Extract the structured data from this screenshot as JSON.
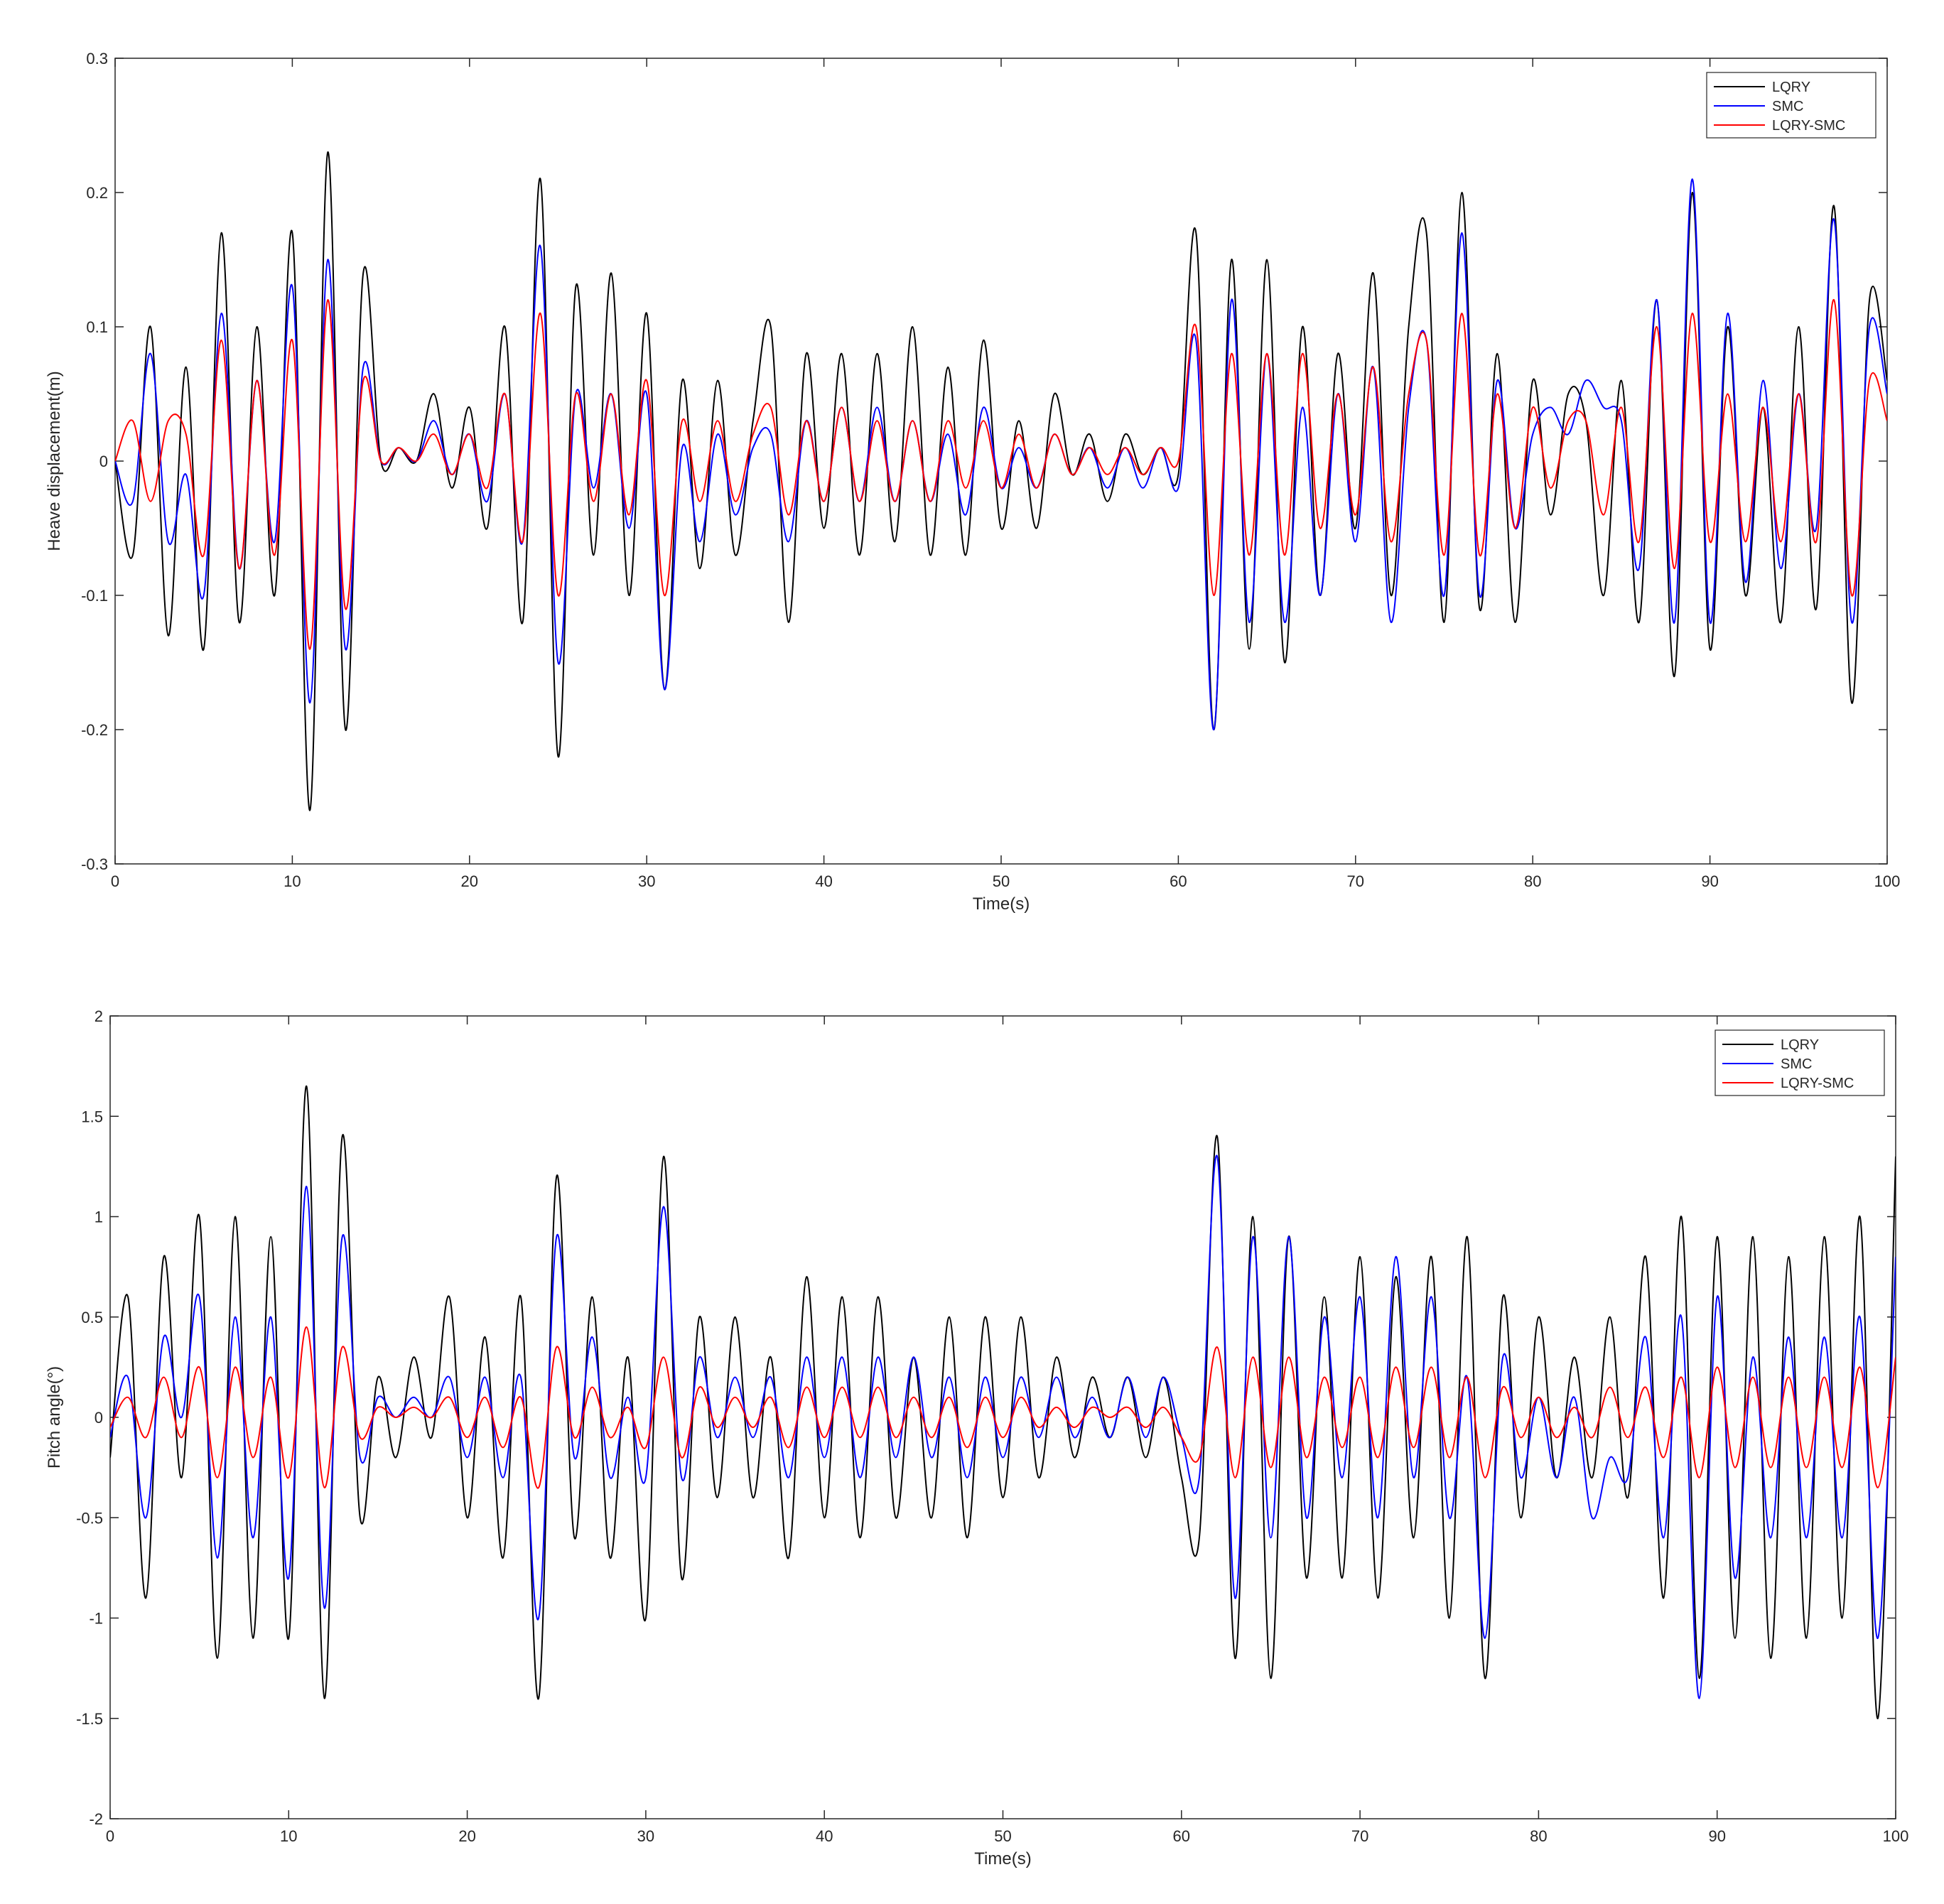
{
  "chart_data": [
    {
      "type": "line",
      "title": "",
      "xlabel": "Time(s)",
      "ylabel": "Heave displacement(m)",
      "xlim": [
        0,
        100
      ],
      "ylim": [
        -0.3,
        0.3
      ],
      "x_ticks": [
        "0",
        "10",
        "20",
        "30",
        "40",
        "50",
        "60",
        "70",
        "80",
        "90",
        "100"
      ],
      "y_ticks": [
        "-0.3",
        "-0.2",
        "-0.1",
        "0",
        "0.1",
        "0.2",
        "0.3"
      ],
      "grid": false,
      "legend_position": "top-right",
      "x": [
        0,
        1,
        2,
        3,
        4,
        5,
        6,
        7,
        8,
        9,
        10,
        11,
        12,
        13,
        14,
        15,
        16,
        17,
        18,
        19,
        20,
        21,
        22,
        23,
        24,
        25,
        26,
        27,
        28,
        29,
        30,
        31,
        32,
        33,
        34,
        35,
        36,
        37,
        38,
        39,
        40,
        41,
        42,
        43,
        44,
        45,
        46,
        47,
        48,
        49,
        50,
        51,
        52,
        53,
        54,
        55,
        56,
        57,
        58,
        59,
        60,
        61,
        62,
        63,
        64,
        65,
        66,
        67,
        68,
        69,
        70,
        71,
        72,
        73,
        74,
        75,
        76,
        77,
        78,
        79,
        80,
        81,
        82,
        83,
        84,
        85,
        86,
        87,
        88,
        89,
        90,
        91,
        92,
        93,
        94,
        95,
        96,
        97,
        98,
        99,
        100
      ],
      "series": [
        {
          "name": "LQRY",
          "color": "#000000",
          "values": [
            0,
            -0.07,
            0.1,
            -0.13,
            0.07,
            -0.14,
            0.17,
            -0.12,
            0.1,
            -0.1,
            0.17,
            -0.26,
            0.23,
            -0.2,
            0.14,
            0,
            0.01,
            0,
            0.05,
            -0.02,
            0.04,
            -0.05,
            0.1,
            -0.12,
            0.21,
            -0.22,
            0.13,
            -0.07,
            0.14,
            -0.1,
            0.11,
            -0.17,
            0.06,
            -0.08,
            0.06,
            -0.07,
            0.03,
            0.1,
            -0.12,
            0.08,
            -0.05,
            0.08,
            -0.07,
            0.08,
            -0.06,
            0.1,
            -0.07,
            0.07,
            -0.07,
            0.09,
            -0.05,
            0.03,
            -0.05,
            0.05,
            -0.01,
            0.02,
            -0.03,
            0.02,
            -0.01,
            0.01,
            -0.01,
            0.17,
            -0.2,
            0.15,
            -0.14,
            0.15,
            -0.15,
            0.1,
            -0.1,
            0.08,
            -0.05,
            0.14,
            -0.1,
            0.1,
            0.17,
            -0.12,
            0.2,
            -0.11,
            0.08,
            -0.12,
            0.06,
            -0.04,
            0.05,
            0.03,
            -0.1,
            0.06,
            -0.12,
            0.12,
            -0.16,
            0.2,
            -0.14,
            0.1,
            -0.1,
            0.04,
            -0.12,
            0.1,
            -0.11,
            0.19,
            -0.18,
            0.12,
            0.06
          ]
        },
        {
          "name": "SMC",
          "color": "#0000FF",
          "values": [
            0,
            -0.03,
            0.08,
            -0.06,
            -0.01,
            -0.1,
            0.11,
            -0.08,
            0.06,
            -0.06,
            0.13,
            -0.18,
            0.15,
            -0.14,
            0.07,
            0,
            0.01,
            0,
            0.03,
            -0.01,
            0.02,
            -0.03,
            0.05,
            -0.06,
            0.16,
            -0.15,
            0.05,
            -0.02,
            0.05,
            -0.05,
            0.05,
            -0.17,
            0.01,
            -0.06,
            0.02,
            -0.04,
            0.01,
            0.02,
            -0.06,
            0.03,
            -0.03,
            0.04,
            -0.03,
            0.04,
            -0.03,
            0.03,
            -0.03,
            0.02,
            -0.04,
            0.04,
            -0.02,
            0.01,
            -0.02,
            0.02,
            -0.01,
            0.01,
            -0.02,
            0.01,
            -0.02,
            0.01,
            -0.02,
            0.09,
            -0.2,
            0.12,
            -0.12,
            0.08,
            -0.12,
            0.04,
            -0.1,
            0.05,
            -0.06,
            0.07,
            -0.12,
            0.04,
            0.09,
            -0.1,
            0.17,
            -0.1,
            0.06,
            -0.05,
            0.02,
            0.04,
            0.02,
            0.06,
            0.04,
            0.03,
            -0.08,
            0.12,
            -0.12,
            0.21,
            -0.12,
            0.11,
            -0.09,
            0.06,
            -0.08,
            0.05,
            -0.05,
            0.18,
            -0.12,
            0.1,
            0.05
          ]
        },
        {
          "name": "LQRY-SMC",
          "color": "#FF0000",
          "values": [
            0,
            0.03,
            -0.03,
            0.03,
            0.02,
            -0.07,
            0.09,
            -0.08,
            0.06,
            -0.07,
            0.09,
            -0.14,
            0.12,
            -0.11,
            0.06,
            0,
            0.01,
            0,
            0.02,
            -0.01,
            0.02,
            -0.02,
            0.05,
            -0.06,
            0.11,
            -0.1,
            0.05,
            -0.03,
            0.05,
            -0.04,
            0.06,
            -0.1,
            0.03,
            -0.03,
            0.03,
            -0.03,
            0.02,
            0.04,
            -0.04,
            0.03,
            -0.03,
            0.04,
            -0.03,
            0.03,
            -0.03,
            0.03,
            -0.03,
            0.03,
            -0.02,
            0.03,
            -0.02,
            0.02,
            -0.02,
            0.02,
            -0.01,
            0.01,
            -0.01,
            0.01,
            -0.01,
            0.01,
            0,
            0.1,
            -0.1,
            0.08,
            -0.07,
            0.08,
            -0.07,
            0.08,
            -0.05,
            0.05,
            -0.04,
            0.07,
            -0.06,
            0.05,
            0.09,
            -0.07,
            0.11,
            -0.07,
            0.05,
            -0.05,
            0.04,
            -0.02,
            0.03,
            0.03,
            -0.04,
            0.04,
            -0.06,
            0.1,
            -0.08,
            0.11,
            -0.06,
            0.05,
            -0.06,
            0.04,
            -0.06,
            0.05,
            -0.06,
            0.12,
            -0.1,
            0.06,
            0.03
          ]
        }
      ]
    },
    {
      "type": "line",
      "title": "",
      "xlabel": "Time(s)",
      "ylabel": "Pitch angle(°)",
      "xlim": [
        0,
        100
      ],
      "ylim": [
        -2,
        2
      ],
      "x_ticks": [
        "0",
        "10",
        "20",
        "30",
        "40",
        "50",
        "60",
        "70",
        "80",
        "90",
        "100"
      ],
      "y_ticks": [
        "-2",
        "-1.5",
        "-1",
        "-0.5",
        "0",
        "0.5",
        "1",
        "1.5",
        "2"
      ],
      "grid": false,
      "legend_position": "top-right",
      "x": [
        0,
        1,
        2,
        3,
        4,
        5,
        6,
        7,
        8,
        9,
        10,
        11,
        12,
        13,
        14,
        15,
        16,
        17,
        18,
        19,
        20,
        21,
        22,
        23,
        24,
        25,
        26,
        27,
        28,
        29,
        30,
        31,
        32,
        33,
        34,
        35,
        36,
        37,
        38,
        39,
        40,
        41,
        42,
        43,
        44,
        45,
        46,
        47,
        48,
        49,
        50,
        51,
        52,
        53,
        54,
        55,
        56,
        57,
        58,
        59,
        60,
        61,
        62,
        63,
        64,
        65,
        66,
        67,
        68,
        69,
        70,
        71,
        72,
        73,
        74,
        75,
        76,
        77,
        78,
        79,
        80,
        81,
        82,
        83,
        84,
        85,
        86,
        87,
        88,
        89,
        90,
        91,
        92,
        93,
        94,
        95,
        96,
        97,
        98,
        99,
        100
      ],
      "series": [
        {
          "name": "LQRY",
          "color": "#000000",
          "values": [
            -0.2,
            0.6,
            -0.9,
            0.8,
            -0.3,
            1,
            -1.2,
            1,
            -1.1,
            0.9,
            -1.1,
            1.65,
            -1.4,
            1.4,
            -0.5,
            0.2,
            -0.2,
            0.3,
            -0.1,
            0.6,
            -0.5,
            0.4,
            -0.7,
            0.6,
            -1.4,
            1.2,
            -0.6,
            0.6,
            -0.7,
            0.3,
            -1,
            1.3,
            -0.8,
            0.5,
            -0.4,
            0.5,
            -0.4,
            0.3,
            -0.7,
            0.7,
            -0.5,
            0.6,
            -0.6,
            0.6,
            -0.5,
            0.3,
            -0.5,
            0.5,
            -0.6,
            0.5,
            -0.4,
            0.5,
            -0.3,
            0.3,
            -0.2,
            0.2,
            -0.1,
            0.2,
            -0.2,
            0.2,
            -0.3,
            -0.6,
            1.4,
            -1.2,
            1,
            -1.3,
            0.9,
            -0.8,
            0.6,
            -0.8,
            0.8,
            -0.9,
            0.7,
            -0.6,
            0.8,
            -1,
            0.9,
            -1.3,
            0.6,
            -0.5,
            0.5,
            -0.3,
            0.3,
            -0.3,
            0.5,
            -0.4,
            0.8,
            -0.9,
            1,
            -1.3,
            0.9,
            -1.1,
            0.9,
            -1.2,
            0.8,
            -1.1,
            0.9,
            -1,
            1,
            -1.5,
            1.3
          ]
        },
        {
          "name": "SMC",
          "color": "#0000FF",
          "values": [
            -0.1,
            0.2,
            -0.5,
            0.4,
            0,
            0.6,
            -0.7,
            0.5,
            -0.6,
            0.5,
            -0.8,
            1.15,
            -0.95,
            0.9,
            -0.2,
            0.1,
            0,
            0.1,
            0,
            0.2,
            -0.2,
            0.2,
            -0.3,
            0.2,
            -1,
            0.9,
            -0.2,
            0.4,
            -0.3,
            0.1,
            -0.3,
            1.05,
            -0.3,
            0.3,
            -0.1,
            0.2,
            -0.1,
            0.2,
            -0.3,
            0.3,
            -0.2,
            0.3,
            -0.3,
            0.3,
            -0.2,
            0.3,
            -0.2,
            0.2,
            -0.3,
            0.2,
            -0.2,
            0.2,
            -0.1,
            0.2,
            -0.1,
            0.1,
            -0.1,
            0.2,
            -0.1,
            0.2,
            -0.1,
            -0.3,
            1.3,
            -0.9,
            0.9,
            -0.6,
            0.9,
            -0.5,
            0.5,
            -0.3,
            0.6,
            -0.5,
            0.8,
            -0.3,
            0.6,
            -0.5,
            0.2,
            -1.1,
            0.3,
            -0.3,
            0.1,
            -0.3,
            0.1,
            -0.5,
            -0.2,
            -0.3,
            0.4,
            -0.6,
            0.5,
            -1.4,
            0.6,
            -0.8,
            0.3,
            -0.6,
            0.4,
            -0.6,
            0.4,
            -0.6,
            0.5,
            -1.1,
            0.8
          ]
        },
        {
          "name": "LQRY-SMC",
          "color": "#FF0000",
          "values": [
            -0.05,
            0.1,
            -0.1,
            0.2,
            -0.1,
            0.25,
            -0.3,
            0.25,
            -0.2,
            0.2,
            -0.3,
            0.45,
            -0.35,
            0.35,
            -0.1,
            0.05,
            0,
            0.05,
            0,
            0.1,
            -0.1,
            0.1,
            -0.15,
            0.1,
            -0.35,
            0.35,
            -0.1,
            0.15,
            -0.1,
            0.05,
            -0.15,
            0.3,
            -0.2,
            0.15,
            -0.05,
            0.1,
            -0.05,
            0.1,
            -0.15,
            0.15,
            -0.1,
            0.15,
            -0.1,
            0.15,
            -0.1,
            0.1,
            -0.1,
            0.1,
            -0.15,
            0.1,
            -0.1,
            0.1,
            -0.05,
            0.05,
            -0.05,
            0.05,
            0,
            0.05,
            -0.05,
            0.05,
            -0.1,
            -0.2,
            0.35,
            -0.3,
            0.3,
            -0.25,
            0.3,
            -0.2,
            0.2,
            -0.15,
            0.2,
            -0.2,
            0.25,
            -0.15,
            0.25,
            -0.2,
            0.2,
            -0.3,
            0.15,
            -0.1,
            0.1,
            -0.1,
            0.05,
            -0.1,
            0.15,
            -0.1,
            0.15,
            -0.2,
            0.2,
            -0.3,
            0.25,
            -0.25,
            0.2,
            -0.25,
            0.2,
            -0.25,
            0.2,
            -0.25,
            0.25,
            -0.35,
            0.3
          ]
        }
      ]
    }
  ]
}
